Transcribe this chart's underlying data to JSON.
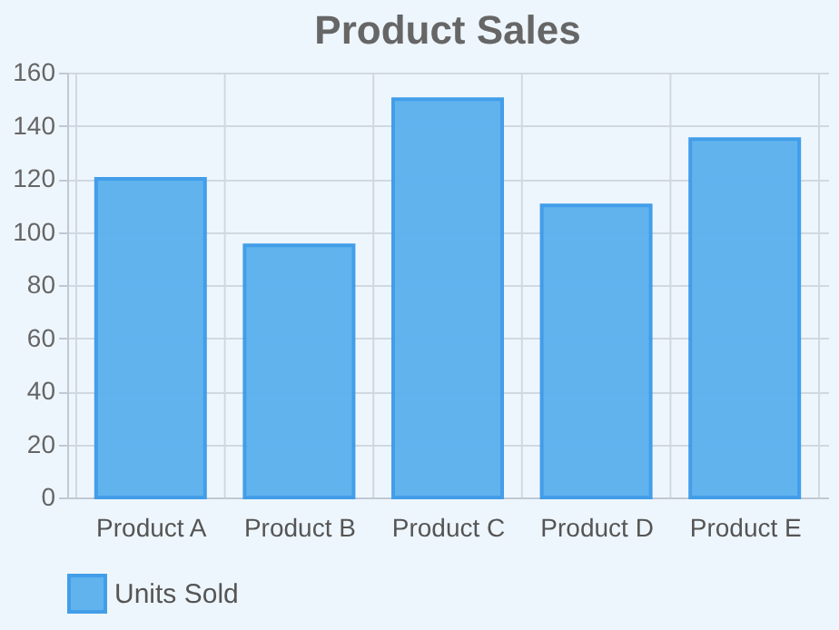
{
  "chart_data": {
    "type": "bar",
    "title": "Product Sales",
    "categories": [
      "Product A",
      "Product B",
      "Product C",
      "Product D",
      "Product E"
    ],
    "series": [
      {
        "name": "Units Sold",
        "color": "#5ab0ee",
        "values": [
          120,
          95,
          150,
          110,
          135
        ]
      }
    ],
    "ylim": [
      0,
      160
    ],
    "yticks": [
      0,
      20,
      40,
      60,
      80,
      100,
      120,
      140,
      160
    ],
    "grid": true,
    "legend": "bottom"
  }
}
